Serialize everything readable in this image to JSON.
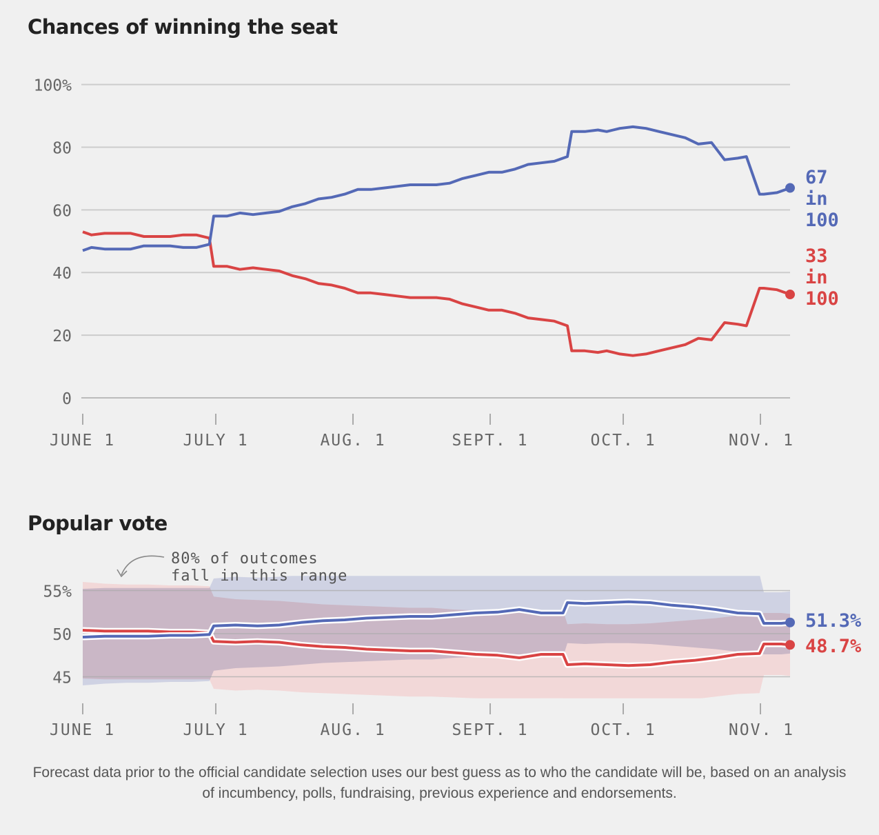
{
  "colors": {
    "dem": "#5469b6",
    "rep": "#d94444",
    "dem_band": "#c9cde0",
    "rep_band": "#f3cdcd",
    "overlap": "#dcc4cb",
    "grid": "#cccccc"
  },
  "footnote": "Forecast data prior to the official candidate selection uses our best guess as to who the candidate will be, based on an analysis of incumbency, polls, fundraising, previous experience and endorsements.",
  "chart_data": [
    {
      "type": "line",
      "title": "Chances of winning the seat",
      "ylim": [
        0,
        100
      ],
      "y_ticks": [
        "100%",
        "80",
        "60",
        "40",
        "20",
        "0"
      ],
      "x_ticks": [
        "JUNE 1",
        "JULY 1",
        "AUG. 1",
        "SEPT. 1",
        "OCT. 1",
        "NOV. 1"
      ],
      "end_labels": {
        "dem": [
          "67",
          "in",
          "100"
        ],
        "rep": [
          "33",
          "in",
          "100"
        ]
      },
      "x": [
        0,
        2,
        5,
        8,
        11,
        14,
        17,
        20,
        23,
        26,
        29,
        30,
        33,
        36,
        39,
        42,
        45,
        48,
        51,
        54,
        57,
        60,
        63,
        66,
        69,
        72,
        75,
        78,
        81,
        84,
        87,
        90,
        93,
        96,
        99,
        102,
        105,
        108,
        111,
        112,
        115,
        118,
        120,
        123,
        126,
        129,
        132,
        135,
        138,
        141,
        144,
        147,
        150,
        152,
        155,
        156,
        159,
        162
      ],
      "series": [
        {
          "name": "dem",
          "values": [
            47,
            48,
            47.5,
            47.5,
            47.5,
            48.5,
            48.5,
            48.5,
            48,
            48,
            49,
            58,
            58,
            59,
            58.5,
            59,
            59.5,
            61,
            62,
            63.5,
            64,
            65,
            66.5,
            66.5,
            67,
            67.5,
            68,
            68,
            68,
            68.5,
            70,
            71,
            72,
            72,
            73,
            74.5,
            75,
            75.5,
            77,
            85,
            85,
            85.5,
            85,
            86,
            86.5,
            86,
            85,
            84,
            83,
            81,
            81.5,
            76,
            76.5,
            77,
            65,
            65,
            65.5,
            67
          ]
        },
        {
          "name": "rep",
          "values": [
            53,
            52,
            52.5,
            52.5,
            52.5,
            51.5,
            51.5,
            51.5,
            52,
            52,
            51,
            42,
            42,
            41,
            41.5,
            41,
            40.5,
            39,
            38,
            36.5,
            36,
            35,
            33.5,
            33.5,
            33,
            32.5,
            32,
            32,
            32,
            31.5,
            30,
            29,
            28,
            28,
            27,
            25.5,
            25,
            24.5,
            23,
            15,
            15,
            14.5,
            15,
            14,
            13.5,
            14,
            15,
            16,
            17,
            19,
            18.5,
            24,
            23.5,
            23,
            35,
            35,
            34.5,
            33
          ]
        }
      ]
    },
    {
      "type": "area",
      "title": "Popular vote",
      "ylim": [
        42.5,
        56.7
      ],
      "y_ticks": [
        "55%",
        "50",
        "45"
      ],
      "y_tick_values": [
        55,
        50,
        45
      ],
      "x_ticks": [
        "JUNE 1",
        "JULY 1",
        "AUG. 1",
        "SEPT. 1",
        "OCT. 1",
        "NOV. 1"
      ],
      "annotation": [
        "80% of outcomes",
        "fall in this range"
      ],
      "end_labels": {
        "dem": "51.3%",
        "rep": "48.7%"
      },
      "x": [
        0,
        5,
        10,
        15,
        20,
        25,
        29,
        30,
        35,
        40,
        45,
        50,
        55,
        60,
        65,
        70,
        75,
        80,
        85,
        90,
        95,
        100,
        105,
        110,
        111,
        115,
        120,
        125,
        130,
        135,
        140,
        145,
        150,
        155,
        156,
        160,
        162
      ],
      "series": [
        {
          "name": "dem",
          "values": [
            49.6,
            49.7,
            49.7,
            49.7,
            49.8,
            49.8,
            49.9,
            50.9,
            51,
            50.9,
            51,
            51.3,
            51.5,
            51.6,
            51.8,
            51.9,
            52,
            52,
            52.2,
            52.4,
            52.5,
            52.8,
            52.4,
            52.4,
            53.6,
            53.5,
            53.6,
            53.7,
            53.6,
            53.3,
            53.1,
            52.8,
            52.4,
            52.3,
            51.2,
            51.2,
            51.3
          ]
        },
        {
          "name": "rep",
          "values": [
            50.4,
            50.3,
            50.3,
            50.3,
            50.2,
            50.2,
            50.1,
            49.1,
            49,
            49.1,
            49,
            48.7,
            48.5,
            48.4,
            48.2,
            48.1,
            48,
            48,
            47.8,
            47.6,
            47.5,
            47.2,
            47.6,
            47.6,
            46.4,
            46.5,
            46.4,
            46.3,
            46.4,
            46.7,
            46.9,
            47.2,
            47.6,
            47.7,
            48.8,
            48.8,
            48.7
          ]
        },
        {
          "name": "dem_range",
          "low": [
            44,
            44.2,
            44.3,
            44.3,
            44.4,
            44.4,
            44.5,
            45.7,
            46,
            46.1,
            46.2,
            46.4,
            46.6,
            46.7,
            46.8,
            46.9,
            47,
            47,
            47.2,
            47.3,
            47.4,
            47.6,
            47.3,
            47.3,
            48.9,
            48.8,
            48.9,
            48.9,
            48.8,
            48.6,
            48.4,
            48.2,
            47.9,
            47.8,
            47.6,
            47.6,
            47.7
          ],
          "high": [
            55.2,
            55.3,
            55.3,
            55.3,
            55.3,
            55.3,
            55.3,
            56.4,
            56.6,
            56.5,
            56.6,
            56.8,
            56.9,
            57,
            57.1,
            57.2,
            57.3,
            57.3,
            57.4,
            57.5,
            57.6,
            57.8,
            57.5,
            57.5,
            58,
            58,
            58,
            58,
            58,
            57.8,
            57.6,
            57.3,
            57,
            56.9,
            54.8,
            54.8,
            54.9
          ]
        },
        {
          "name": "rep_range",
          "low": [
            44.8,
            44.7,
            44.7,
            44.7,
            44.7,
            44.7,
            44.7,
            43.6,
            43.4,
            43.5,
            43.4,
            43.2,
            43.1,
            43,
            42.9,
            42.8,
            42.7,
            42.7,
            42.6,
            42.5,
            42.4,
            42.2,
            42.5,
            42.5,
            42,
            42,
            42,
            42,
            42,
            42.2,
            42.4,
            42.7,
            43,
            43.1,
            45.2,
            45.2,
            45.1
          ],
          "high": [
            56,
            55.8,
            55.7,
            55.7,
            55.6,
            55.6,
            55.5,
            54.3,
            54,
            53.9,
            53.8,
            53.6,
            53.4,
            53.3,
            53.2,
            53.1,
            53,
            53,
            52.8,
            52.7,
            52.6,
            52.4,
            52.7,
            52.7,
            51.1,
            51.2,
            51.1,
            51.1,
            51.2,
            51.4,
            51.6,
            51.8,
            52.1,
            52.2,
            52.4,
            52.4,
            52.3
          ]
        }
      ]
    }
  ]
}
